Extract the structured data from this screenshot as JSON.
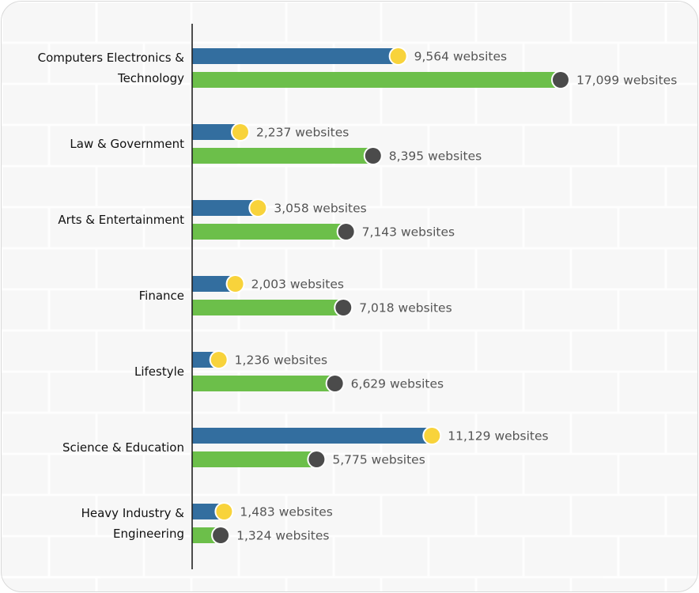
{
  "colors": {
    "card_background": "#f7f7f7",
    "card_border": "#d9d9d9",
    "bar_blue": "#336e9f",
    "bar_green": "#6cbf4a",
    "marker_blue": "#f8d33b",
    "marker_green": "#4b4b4b",
    "axis": "#222222",
    "category_text": "#111111",
    "value_text": "#555555"
  },
  "chart_data": {
    "type": "bar",
    "orientation": "horizontal",
    "categories": [
      [
        "Computers Electronics &",
        "Technology"
      ],
      [
        "Law & Government"
      ],
      [
        "Arts & Entertainment"
      ],
      [
        "Finance"
      ],
      [
        "Lifestyle"
      ],
      [
        "Science & Education"
      ],
      [
        "Heavy Industry &",
        "Engineering"
      ]
    ],
    "series": [
      {
        "color": "#336e9f",
        "marker": "yellow-dot",
        "values": [
          9564,
          2237,
          3058,
          2003,
          1236,
          11129,
          1483
        ],
        "labels": [
          "9,564 websites",
          "2,237 websites",
          "3,058 websites",
          "2,003 websites",
          "1,236 websites",
          "11,129 websites",
          "1,483 websites"
        ]
      },
      {
        "color": "#6cbf4a",
        "marker": "dark-dot",
        "values": [
          17099,
          8395,
          7143,
          7018,
          6629,
          5775,
          1324
        ],
        "labels": [
          "17,099 websites",
          "8,395 websites",
          "7,143 websites",
          "7,018 websites",
          "6,629 websites",
          "5,775 websites",
          "1,324 websites"
        ]
      }
    ],
    "title": "",
    "xlabel": "",
    "ylabel": "",
    "legend": "none",
    "grid": false,
    "xlim": [
      0,
      17099
    ]
  }
}
